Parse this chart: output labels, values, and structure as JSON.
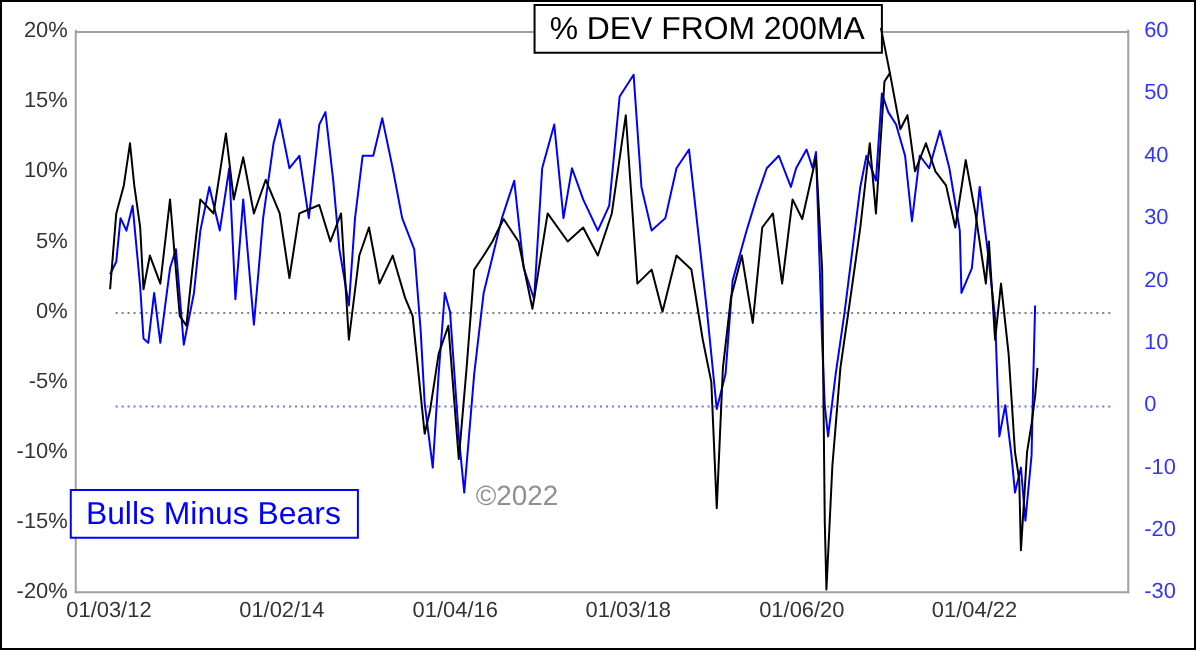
{
  "chart_data": {
    "type": "line",
    "legend": "top",
    "grid": false,
    "marker": "none",
    "line_style": "solid",
    "xlim": [
      "2011-08-16",
      "2023-10-15"
    ],
    "xticks": [
      {
        "value": "2012-01-03",
        "label": "01/03/12"
      },
      {
        "value": "2014-01-02",
        "label": "01/02/14"
      },
      {
        "value": "2016-01-04",
        "label": "01/04/16"
      },
      {
        "value": "2018-01-03",
        "label": "01/03/18"
      },
      {
        "value": "2020-01-06",
        "label": "01/06/20"
      },
      {
        "value": "2022-01-04",
        "label": "01/04/22"
      }
    ],
    "ylim": [
      -20,
      20
    ],
    "yticks": [
      {
        "value": -20,
        "label": "-20%"
      },
      {
        "value": -15,
        "label": "-15%"
      },
      {
        "value": -10,
        "label": "-10%"
      },
      {
        "value": -5,
        "label": "-5%"
      },
      {
        "value": 0,
        "label": "0%"
      },
      {
        "value": 5,
        "label": "5%"
      },
      {
        "value": 10,
        "label": "10%"
      },
      {
        "value": 15,
        "label": "15%"
      },
      {
        "value": 20,
        "label": "20%"
      }
    ],
    "y2lim": [
      -30,
      60
    ],
    "y2ticks": [
      -30,
      -20,
      -10,
      0,
      10,
      20,
      30,
      40,
      50,
      60
    ],
    "ref_lines": [
      {
        "axis": "y",
        "value": 0,
        "color": "#808080",
        "line_style": "dotted"
      },
      {
        "axis": "y2",
        "value": 0,
        "color": "#7070ff",
        "line_style": "dotted"
      }
    ],
    "annotations": [
      "©2022"
    ],
    "series": [
      {
        "name": "% DEV FROM 200MA",
        "color": "#000000",
        "x": [
          "2012-01-08",
          "2012-02-03",
          "2012-03-06",
          "2012-04-01",
          "2012-04-19",
          "2012-05-14",
          "2012-05-28",
          "2012-06-24",
          "2012-08-07",
          "2012-09-17",
          "2012-10-28",
          "2012-11-25",
          "2012-12-20",
          "2013-01-23",
          "2013-03-20",
          "2013-05-11",
          "2013-06-13",
          "2013-07-23",
          "2013-09-06",
          "2013-10-26",
          "2013-12-24",
          "2014-02-03",
          "2014-03-17",
          "2014-06-09",
          "2014-07-26",
          "2014-09-09",
          "2014-10-12",
          "2014-11-25",
          "2015-01-05",
          "2015-02-18",
          "2015-04-15",
          "2015-06-06",
          "2015-07-08",
          "2015-08-28",
          "2015-09-20",
          "2015-10-26",
          "2015-12-06",
          "2016-01-19",
          "2016-02-21",
          "2016-03-24",
          "2016-05-03",
          "2016-06-09",
          "2016-07-26",
          "2016-09-27",
          "2016-11-25",
          "2017-01-28",
          "2017-04-23",
          "2017-06-27",
          "2017-08-28",
          "2017-10-26",
          "2017-12-24",
          "2018-02-11",
          "2018-04-12",
          "2018-05-28",
          "2018-07-26",
          "2018-09-27",
          "2018-11-14",
          "2018-12-20",
          "2019-01-12",
          "2019-02-07",
          "2019-03-13",
          "2019-04-28",
          "2019-06-13",
          "2019-07-23",
          "2019-09-06",
          "2019-10-15",
          "2019-11-28",
          "2020-01-08",
          "2020-03-06",
          "2020-04-01",
          "2020-04-12",
          "2020-04-19",
          "2020-05-14",
          "2020-06-17",
          "2020-07-26",
          "2020-09-09",
          "2020-10-19",
          "2020-11-14",
          "2020-12-20",
          "2021-01-12",
          "2021-02-25",
          "2021-03-27",
          "2021-04-28",
          "2021-06-13",
          "2021-07-23",
          "2021-09-06",
          "2021-10-15",
          "2021-11-28",
          "2022-01-08",
          "2022-02-21",
          "2022-03-06",
          "2022-04-01",
          "2022-04-26",
          "2022-05-28",
          "2022-06-24",
          "2022-07-12",
          "2022-07-19",
          "2022-08-14",
          "2022-09-02",
          "2022-09-17",
          "2022-09-27"
        ],
        "values": [
          1.6,
          7,
          9,
          12,
          9,
          6,
          1.6,
          4,
          2,
          8,
          -0.3,
          -1,
          3,
          8,
          7,
          12.7,
          8,
          11,
          7,
          9.4,
          7,
          2.4,
          7,
          7.6,
          5,
          7,
          -2,
          4,
          6,
          2,
          4,
          1,
          -0.3,
          -8.7,
          -7,
          -3,
          -1,
          -10.5,
          -4,
          3,
          4,
          5,
          6.6,
          5,
          0.2,
          7,
          5,
          6,
          4,
          7,
          14,
          2,
          3,
          0,
          4,
          3,
          -2,
          -5,
          -14,
          -4,
          1,
          4,
          -0.8,
          6,
          7,
          2,
          8,
          6.6,
          11,
          3,
          -15,
          -19.8,
          -11,
          -4,
          0.6,
          6,
          12,
          7,
          16.4,
          17,
          13,
          14,
          10,
          12,
          10,
          9,
          6,
          10.8,
          7,
          2,
          5,
          -2,
          2,
          -3,
          -10,
          -12,
          -17,
          -10,
          -8,
          -6,
          -4
        ]
      },
      {
        "name": "Bulls Minus Bears",
        "color": "#0000ff",
        "axis": "y2",
        "x": [
          "2012-01-08",
          "2012-02-03",
          "2012-02-21",
          "2012-03-17",
          "2012-04-12",
          "2012-05-14",
          "2012-05-28",
          "2012-06-17",
          "2012-07-12",
          "2012-08-07",
          "2012-09-17",
          "2012-10-12",
          "2012-11-14",
          "2012-12-27",
          "2013-01-23",
          "2013-03-02",
          "2013-04-15",
          "2013-05-25",
          "2013-06-20",
          "2013-07-23",
          "2013-09-06",
          "2013-10-15",
          "2013-11-28",
          "2013-12-24",
          "2014-02-03",
          "2014-03-17",
          "2014-04-26",
          "2014-06-09",
          "2014-07-05",
          "2014-08-07",
          "2014-09-02",
          "2014-10-12",
          "2014-11-07",
          "2014-12-09",
          "2015-01-23",
          "2015-03-02",
          "2015-04-15",
          "2015-05-25",
          "2015-07-15",
          "2015-08-11",
          "2015-08-28",
          "2015-10-01",
          "2015-10-26",
          "2015-11-21",
          "2015-12-13",
          "2016-01-19",
          "2016-02-11",
          "2016-03-24",
          "2016-05-03",
          "2016-06-17",
          "2016-07-19",
          "2016-09-09",
          "2016-10-19",
          "2016-12-02",
          "2017-01-05",
          "2017-02-25",
          "2017-04-05",
          "2017-05-11",
          "2017-06-27",
          "2017-08-28",
          "2017-10-15",
          "2017-11-28",
          "2018-01-26",
          "2018-02-28",
          "2018-04-12",
          "2018-06-09",
          "2018-07-26",
          "2018-09-17",
          "2018-10-19",
          "2018-12-02",
          "2019-01-12",
          "2019-02-18",
          "2019-03-20",
          "2019-05-18",
          "2019-06-27",
          "2019-08-11",
          "2019-10-01",
          "2019-11-21",
          "2019-12-13",
          "2020-01-26",
          "2020-02-21",
          "2020-03-06",
          "2020-04-01",
          "2020-04-12",
          "2020-04-26",
          "2020-05-28",
          "2020-07-05",
          "2020-08-07",
          "2020-09-09",
          "2020-10-05",
          "2020-11-14",
          "2020-12-09",
          "2021-01-05",
          "2021-02-07",
          "2021-03-17",
          "2021-04-15",
          "2021-05-18",
          "2021-06-27",
          "2021-08-11",
          "2021-09-20",
          "2021-11-03",
          "2021-11-10",
          "2021-12-24",
          "2022-01-26",
          "2022-02-28",
          "2022-04-01",
          "2022-04-19",
          "2022-05-14",
          "2022-06-09",
          "2022-06-24",
          "2022-07-19",
          "2022-08-07",
          "2022-09-02",
          "2022-09-09",
          "2022-09-17"
        ],
        "values": [
          21,
          23,
          30,
          28,
          32,
          19,
          10.7,
          10,
          18,
          10,
          22,
          25,
          9.7,
          18,
          28,
          35,
          28,
          38,
          17,
          33,
          12.9,
          30,
          42,
          45.8,
          38,
          40,
          30,
          45,
          47,
          36,
          25,
          16,
          30,
          40,
          40,
          46,
          38,
          30,
          25,
          12,
          0.3,
          -10,
          5,
          18,
          15,
          -5,
          -14,
          5,
          18,
          25,
          30,
          36,
          22,
          17,
          38,
          45,
          30,
          38,
          33,
          28,
          32,
          49.5,
          53,
          35,
          28,
          30,
          38,
          41,
          30,
          15,
          -0.6,
          5,
          20,
          28,
          33,
          38,
          40,
          35,
          38,
          41,
          38,
          40.6,
          10,
          0,
          -5,
          5,
          15,
          25,
          35,
          40,
          36,
          50,
          47,
          45,
          40,
          29.5,
          40,
          38,
          44,
          38,
          28,
          18,
          22,
          35,
          25,
          14,
          -5,
          0,
          -8,
          -14,
          -10,
          -18.5,
          -8,
          4,
          16
        ]
      }
    ]
  }
}
